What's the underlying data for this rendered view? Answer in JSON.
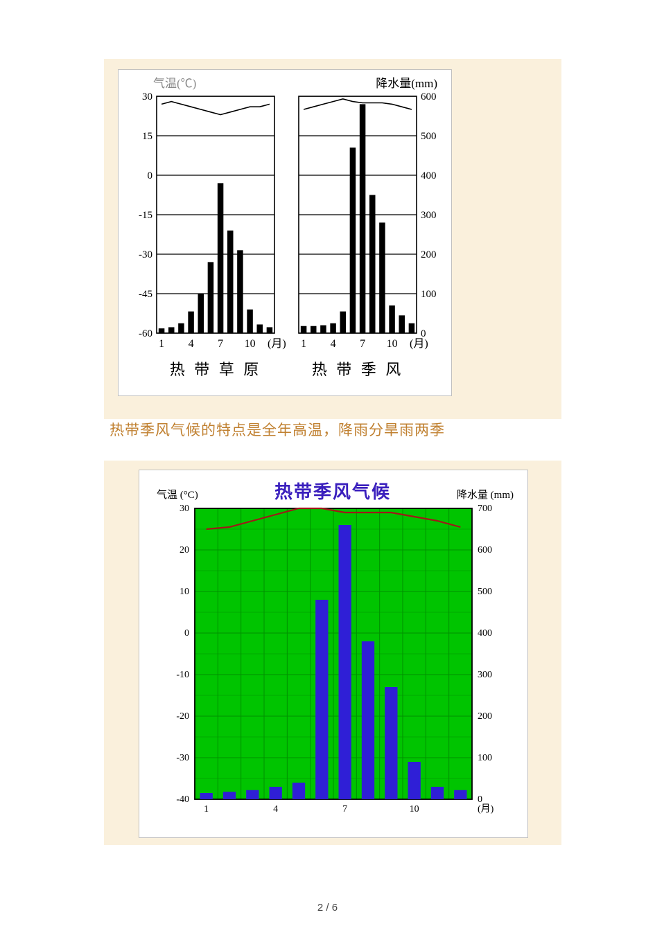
{
  "description_text": "热带季风气候的特点是全年高温，降雨分旱雨两季",
  "page_number": "2 / 6",
  "bw_figure": {
    "background_color": "#ffffff",
    "border_color": "#c0c0c0",
    "left_y_label": "气温(℃)",
    "right_y_label": "降水量(mm)",
    "x_unit": "(月)",
    "left_caption": "热 带 草 原",
    "right_caption": "热 带 季 风",
    "temp_ticks": [
      30,
      15,
      0,
      -15,
      -30,
      -45,
      -60
    ],
    "precip_ticks": [
      600,
      500,
      400,
      300,
      200,
      100,
      0
    ],
    "x_ticks": [
      1,
      4,
      7,
      10
    ],
    "panel_left": {
      "type": "climograph",
      "bars": [
        12,
        15,
        25,
        55,
        100,
        180,
        380,
        260,
        210,
        60,
        22,
        15
      ],
      "temp_line": [
        27,
        28,
        27,
        26,
        25,
        24,
        23,
        24,
        25,
        26,
        26,
        27
      ],
      "bar_color": "#000000",
      "line_color": "#000000"
    },
    "panel_right": {
      "type": "climograph",
      "bars": [
        18,
        18,
        20,
        25,
        55,
        470,
        580,
        350,
        280,
        70,
        45,
        25
      ],
      "temp_line": [
        25,
        26,
        27,
        28,
        29,
        28,
        27.5,
        27.5,
        27.5,
        27,
        26,
        25
      ],
      "bar_color": "#000000",
      "line_color": "#000000"
    }
  },
  "green_figure": {
    "title": "热带季风气候",
    "left_side": "气温 (°C)",
    "right_side": "降水量 (mm)",
    "x_unit": "(月)",
    "background_color": "#00c400",
    "grid_color": "#009000",
    "bar_color": "#2f1fd6",
    "temp_line_color": "#a01818",
    "temp_tick_values": [
      30,
      20,
      10,
      0,
      -10,
      -20,
      -30,
      -40
    ],
    "precip_tick_values": [
      700,
      600,
      500,
      400,
      300,
      200,
      100,
      0
    ],
    "x_tick_values": [
      1,
      4,
      7,
      10
    ],
    "precip": [
      15,
      18,
      22,
      30,
      40,
      480,
      660,
      380,
      270,
      90,
      30,
      22
    ],
    "temp": [
      25,
      25.5,
      27,
      28.5,
      30,
      30,
      29,
      29,
      29,
      28,
      27,
      25.5
    ]
  }
}
